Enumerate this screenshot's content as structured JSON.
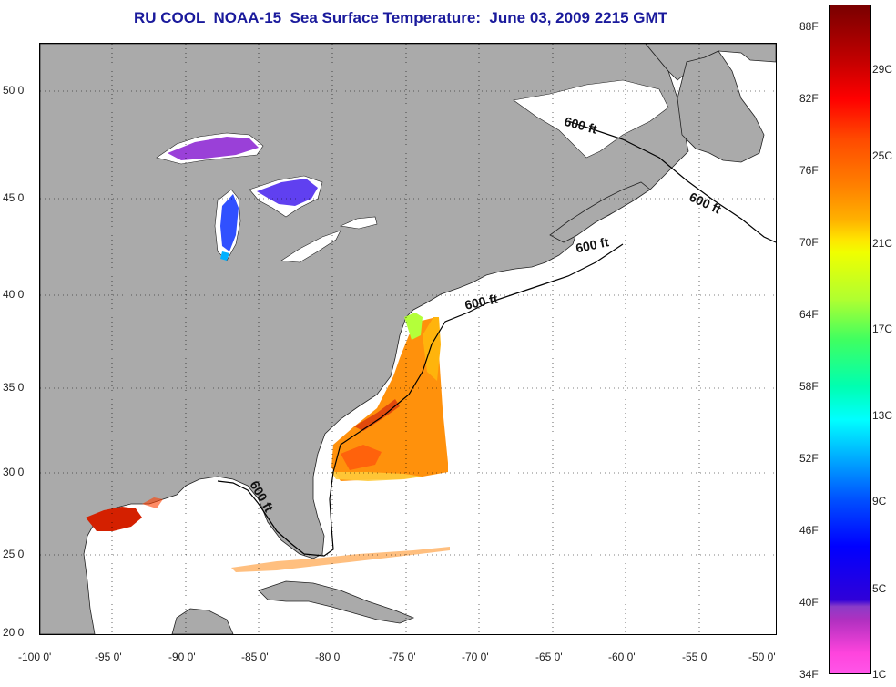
{
  "title": "RU COOL  NOAA-15  Sea Surface Temperature:  June 03, 2009 2215 GMT",
  "lat_labels": [
    "50 0'",
    "45 0'",
    "40 0'",
    "35 0'",
    "30 0'",
    "25 0'",
    "20 0'"
  ],
  "lon_labels": [
    "-100 0'",
    "-95 0'",
    "-90 0'",
    "-85 0'",
    "-80 0'",
    "-75 0'",
    "-70 0'",
    "-65 0'",
    "-60 0'",
    "-55 0'",
    "-50 0'"
  ],
  "contour_label": "600 ft",
  "colorbar": {
    "fahrenheit": [
      "88F",
      "82F",
      "76F",
      "70F",
      "64F",
      "58F",
      "52F",
      "46F",
      "40F",
      "34F"
    ],
    "celsius": [
      "29C",
      "25C",
      "21C",
      "17C",
      "13C",
      "9C",
      "5C",
      "1C"
    ]
  },
  "colors": {
    "land": "#aaaaaa",
    "ocean": "#ffffff",
    "title": "#1a1a9c"
  }
}
